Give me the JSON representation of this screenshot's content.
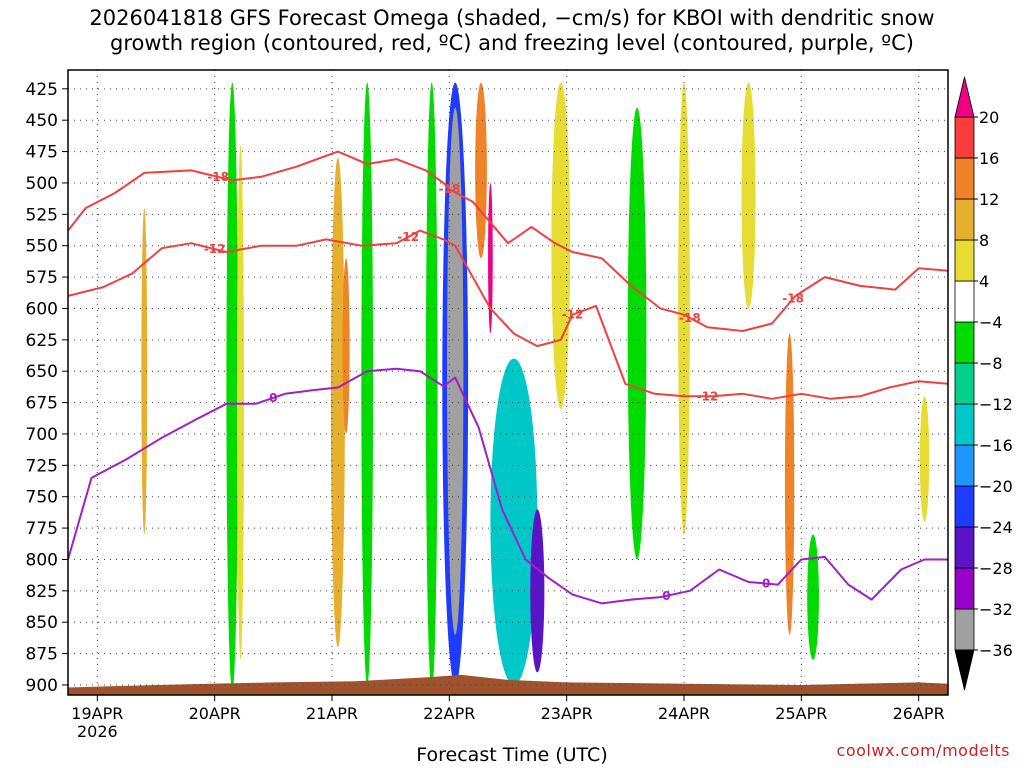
{
  "chart_data": {
    "type": "heatmap",
    "title_line1": "2026041818 GFS Forecast Omega (shaded, −cm/s) for KBOI with dendritic snow",
    "title_line2": "growth region (contoured, red, ºC) and freezing level (contoured, purple, ºC)",
    "xlabel": "Forecast Time (UTC)",
    "ylabel": "",
    "credit": "coolwx.com/modelts",
    "x_tick_labels": [
      "19APR",
      "20APR",
      "21APR",
      "22APR",
      "23APR",
      "24APR",
      "25APR",
      "26APR"
    ],
    "x_year_label": "2026",
    "x_range_days": [
      -0.25,
      7.25
    ],
    "y_ticks": [
      425,
      450,
      475,
      500,
      525,
      550,
      575,
      600,
      625,
      650,
      675,
      700,
      725,
      750,
      775,
      800,
      825,
      850,
      875,
      900
    ],
    "y_range": [
      410,
      908
    ],
    "grid": true,
    "colorbar": {
      "levels": [
        -36,
        -32,
        -28,
        -24,
        -20,
        -16,
        -12,
        -8,
        -4,
        4,
        8,
        12,
        16,
        20
      ],
      "tick_labels": [
        "20",
        "16",
        "12",
        "8",
        "4",
        "−4",
        "−8",
        "−12",
        "−16",
        "−20",
        "−24",
        "−28",
        "−32",
        "−36"
      ],
      "colors": [
        "#000000",
        "#a0a0a0",
        "#9600c8",
        "#5a14c8",
        "#1e3cff",
        "#1e96ff",
        "#00c8c8",
        "#00d28c",
        "#00dc00",
        "#ffffff",
        "#e6dc32",
        "#e6af2d",
        "#f08228",
        "#fa3c3c",
        "#f00082"
      ]
    },
    "omega_features": [
      {
        "day": 1.15,
        "p_top": 420,
        "p_bot": 905,
        "width": 0.1,
        "value": -8
      },
      {
        "day": 1.22,
        "p_top": 470,
        "p_bot": 880,
        "width": 0.06,
        "value": 4
      },
      {
        "day": 0.4,
        "p_top": 520,
        "p_bot": 780,
        "width": 0.05,
        "value": 8
      },
      {
        "day": 2.05,
        "p_top": 480,
        "p_bot": 870,
        "width": 0.12,
        "value": 8
      },
      {
        "day": 2.12,
        "p_top": 560,
        "p_bot": 700,
        "width": 0.06,
        "value": 12
      },
      {
        "day": 2.3,
        "p_top": 420,
        "p_bot": 900,
        "width": 0.1,
        "value": -8
      },
      {
        "day": 2.85,
        "p_top": 420,
        "p_bot": 905,
        "width": 0.1,
        "value": -8
      },
      {
        "day": 3.05,
        "p_top": 420,
        "p_bot": 900,
        "width": 0.22,
        "value": -24
      },
      {
        "day": 3.05,
        "p_top": 440,
        "p_bot": 860,
        "width": 0.14,
        "value": -36
      },
      {
        "day": 3.27,
        "p_top": 420,
        "p_bot": 560,
        "width": 0.1,
        "value": 12
      },
      {
        "day": 3.35,
        "p_top": 500,
        "p_bot": 620,
        "width": 0.04,
        "value": 20
      },
      {
        "day": 3.55,
        "p_top": 640,
        "p_bot": 900,
        "width": 0.4,
        "value": -16
      },
      {
        "day": 3.75,
        "p_top": 760,
        "p_bot": 890,
        "width": 0.12,
        "value": -28
      },
      {
        "day": 3.95,
        "p_top": 420,
        "p_bot": 680,
        "width": 0.16,
        "value": 4
      },
      {
        "day": 4.6,
        "p_top": 440,
        "p_bot": 800,
        "width": 0.16,
        "value": -8
      },
      {
        "day": 5.0,
        "p_top": 420,
        "p_bot": 780,
        "width": 0.1,
        "value": 4
      },
      {
        "day": 5.55,
        "p_top": 420,
        "p_bot": 600,
        "width": 0.12,
        "value": 4
      },
      {
        "day": 5.9,
        "p_top": 620,
        "p_bot": 860,
        "width": 0.08,
        "value": 12
      },
      {
        "day": 6.1,
        "p_top": 780,
        "p_bot": 880,
        "width": 0.1,
        "value": -8
      },
      {
        "day": 7.05,
        "p_top": 670,
        "p_bot": 770,
        "width": 0.08,
        "value": 4
      }
    ],
    "series": [
      {
        "name": "-18",
        "color": "#f04040",
        "label_days": [
          1.03,
          3.0,
          5.05,
          5.93
        ],
        "x": [
          -0.25,
          -0.1,
          0.15,
          0.4,
          0.8,
          1.15,
          1.4,
          1.7,
          1.9,
          2.05,
          2.3,
          2.55,
          2.8,
          2.95,
          3.0,
          3.2,
          3.5,
          3.7,
          3.9,
          4.05,
          4.3,
          4.55,
          4.8,
          5.0,
          5.2,
          5.5,
          5.75,
          5.95,
          6.2,
          6.5,
          6.8,
          7.0,
          7.25
        ],
        "y": [
          538,
          520,
          508,
          492,
          490,
          498,
          495,
          487,
          480,
          475,
          485,
          481,
          490,
          500,
          505,
          515,
          548,
          535,
          548,
          555,
          560,
          582,
          600,
          605,
          615,
          618,
          612,
          590,
          575,
          582,
          585,
          568,
          570
        ]
      },
      {
        "name": "-12",
        "color": "#f04040",
        "label_days": [
          1.0,
          2.65,
          4.05,
          5.2
        ],
        "x": [
          -0.25,
          0.05,
          0.3,
          0.55,
          0.8,
          1.1,
          1.4,
          1.7,
          1.95,
          2.25,
          2.55,
          2.75,
          2.95,
          3.05,
          3.35,
          3.55,
          3.75,
          3.95,
          4.05,
          4.25,
          4.5,
          4.75,
          5.0,
          5.25,
          5.5,
          5.75,
          6.0,
          6.25,
          6.5,
          6.75,
          7.0,
          7.25
        ],
        "y": [
          590,
          583,
          572,
          552,
          548,
          555,
          550,
          550,
          545,
          550,
          548,
          538,
          545,
          550,
          600,
          620,
          630,
          625,
          605,
          598,
          660,
          668,
          670,
          670,
          668,
          672,
          668,
          672,
          670,
          663,
          658,
          660
        ]
      },
      {
        "name": "0",
        "color": "#a020c8",
        "label_days": [
          1.5,
          4.85,
          5.7
        ],
        "x": [
          -0.25,
          -0.05,
          0.25,
          0.55,
          0.85,
          1.1,
          1.35,
          1.6,
          1.85,
          2.05,
          2.3,
          2.55,
          2.75,
          2.95,
          3.05,
          3.25,
          3.45,
          3.65,
          3.85,
          4.05,
          4.3,
          4.55,
          4.8,
          5.05,
          5.3,
          5.55,
          5.8,
          6.0,
          6.2,
          6.4,
          6.6,
          6.85,
          7.05,
          7.25
        ],
        "y": [
          800,
          735,
          720,
          703,
          688,
          676,
          676,
          668,
          665,
          663,
          650,
          648,
          650,
          662,
          655,
          695,
          760,
          800,
          815,
          828,
          835,
          832,
          830,
          825,
          808,
          818,
          820,
          800,
          798,
          820,
          832,
          808,
          800,
          800
        ]
      }
    ]
  }
}
